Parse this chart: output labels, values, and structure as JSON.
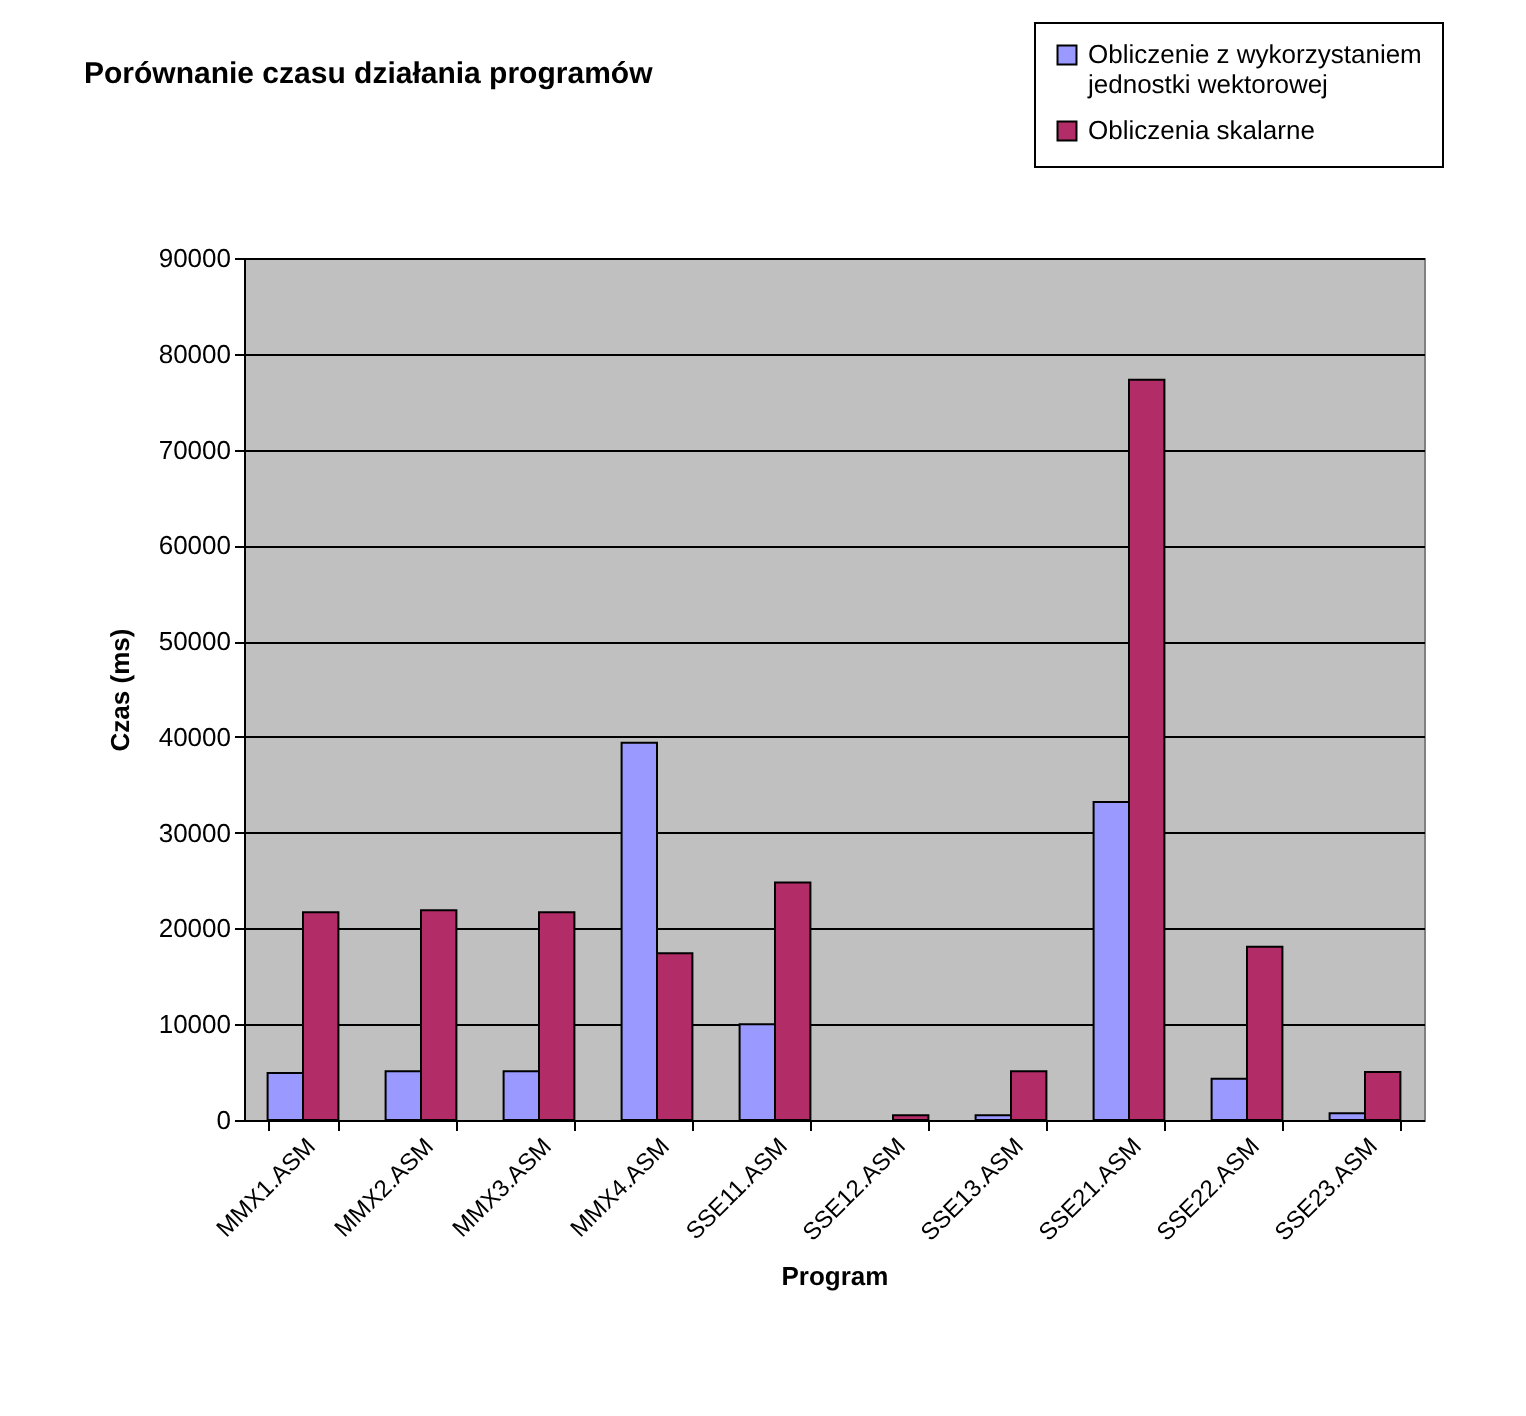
{
  "chart_data": {
    "type": "bar",
    "title": "Porównanie czasu działania programów",
    "xlabel": "Program",
    "ylabel": "Czas (ms)",
    "categories": [
      "MMX1.ASM",
      "MMX2.ASM",
      "MMX3.ASM",
      "MMX4.ASM",
      "SSE11.ASM",
      "SSE12.ASM",
      "SSE13.ASM",
      "SSE21.ASM",
      "SSE22.ASM",
      "SSE23.ASM"
    ],
    "series": [
      {
        "name": "Obliczenie z wykorzystaniem jednostki wektorowej",
        "color": "#9999ff",
        "values": [
          4900,
          5100,
          5100,
          39400,
          10000,
          null,
          500,
          33200,
          4300,
          700
        ]
      },
      {
        "name": "Obliczenia skalarne",
        "color": "#b22d67",
        "values": [
          21700,
          21900,
          21700,
          17400,
          24800,
          500,
          5100,
          77300,
          18100,
          5000
        ]
      }
    ],
    "ylim": [
      0,
      90000
    ],
    "yticks": [
      0,
      10000,
      20000,
      30000,
      40000,
      50000,
      60000,
      70000,
      80000,
      90000
    ],
    "grid": "y",
    "legend": "top right"
  }
}
